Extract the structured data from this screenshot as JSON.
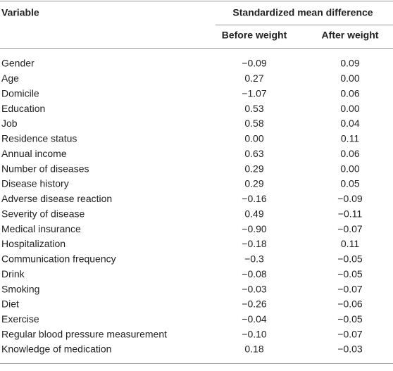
{
  "table": {
    "header": [
      "Variable",
      "Standardized mean difference"
    ],
    "subheader": [
      "Before weight",
      "After weight"
    ],
    "rows": [
      [
        "Gender",
        "−0.09",
        "0.09"
      ],
      [
        "Age",
        "0.27",
        "0.00"
      ],
      [
        "Domicile",
        "−1.07",
        "0.06"
      ],
      [
        "Education",
        "0.53",
        "0.00"
      ],
      [
        "Job",
        "0.58",
        "0.04"
      ],
      [
        "Residence status",
        "0.00",
        "0.11"
      ],
      [
        "Annual income",
        "0.63",
        "0.06"
      ],
      [
        "Number of diseases",
        "0.29",
        "0.00"
      ],
      [
        "Disease history",
        "0.29",
        "0.05"
      ],
      [
        "Adverse disease reaction",
        "−0.16",
        "−0.09"
      ],
      [
        "Severity of disease",
        "0.49",
        "−0.11"
      ],
      [
        "Medical insurance",
        "−0.90",
        "−0.07"
      ],
      [
        "Hospitalization",
        "−0.18",
        "0.11"
      ],
      [
        "Communication frequency",
        "−0.3",
        "−0.05"
      ],
      [
        "Drink",
        "−0.08",
        "−0.05"
      ],
      [
        "Smoking",
        "−0.03",
        "−0.07"
      ],
      [
        "Diet",
        "−0.26",
        "−0.06"
      ],
      [
        "Exercise",
        "−0.04",
        "−0.05"
      ],
      [
        "Regular blood pressure measurement",
        "−0.10",
        "−0.07"
      ],
      [
        "Knowledge of medication",
        "0.18",
        "−0.03"
      ]
    ]
  }
}
